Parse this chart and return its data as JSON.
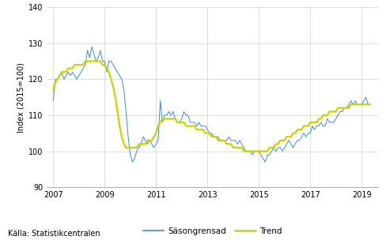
{
  "ylabel": "Index (2015=100)",
  "source": "Källa: Statistikcentralen",
  "legend_labels": [
    "Säsongrensad",
    "Trend"
  ],
  "line_color_seas": "#3a8fc7",
  "line_color_trend": "#c8d400",
  "ylim": [
    90,
    140
  ],
  "yticks": [
    90,
    100,
    110,
    120,
    130,
    140
  ],
  "xticks": [
    2007,
    2009,
    2011,
    2013,
    2015,
    2017,
    2019
  ],
  "xlim": [
    2006.75,
    2019.65
  ],
  "background_color": "#ffffff",
  "grid_color": "#d0d0d0",
  "seas_data": [
    114,
    120,
    120,
    121,
    122,
    120,
    121,
    122,
    121,
    122,
    121,
    120,
    121,
    122,
    123,
    124,
    128,
    126,
    129,
    127,
    125,
    126,
    128,
    125,
    125,
    122,
    125,
    125,
    124,
    123,
    122,
    121,
    120,
    117,
    111,
    104,
    99,
    97,
    98,
    100,
    101,
    102,
    104,
    103,
    102,
    103,
    102,
    101,
    102,
    103,
    114,
    108,
    110,
    110,
    111,
    110,
    111,
    109,
    108,
    108,
    109,
    111,
    110,
    110,
    108,
    108,
    108,
    107,
    108,
    107,
    107,
    107,
    106,
    105,
    105,
    104,
    104,
    104,
    103,
    103,
    103,
    103,
    104,
    103,
    103,
    103,
    102,
    103,
    102,
    101,
    100,
    100,
    100,
    99,
    100,
    100,
    100,
    99,
    98,
    97,
    99,
    99,
    100,
    101,
    100,
    101,
    101,
    100,
    101,
    102,
    103,
    102,
    101,
    102,
    103,
    103,
    104,
    105,
    104,
    105,
    105,
    107,
    106,
    107,
    107,
    108,
    107,
    107,
    109,
    108,
    108,
    108,
    109,
    110,
    111,
    111,
    112,
    112,
    113,
    114,
    113,
    114,
    113,
    113,
    113,
    114,
    115,
    113,
    113,
    113,
    114,
    113,
    113
  ],
  "trend_data": [
    117,
    119,
    120,
    121,
    122,
    122,
    122,
    123,
    123,
    123,
    124,
    124,
    124,
    124,
    124,
    125,
    125,
    125,
    125,
    125,
    125,
    125,
    125,
    124,
    124,
    123,
    122,
    120,
    118,
    115,
    111,
    107,
    104,
    102,
    101,
    101,
    101,
    101,
    101,
    101,
    102,
    102,
    102,
    102,
    103,
    103,
    103,
    104,
    105,
    107,
    108,
    109,
    109,
    109,
    109,
    109,
    109,
    109,
    108,
    108,
    108,
    108,
    107,
    107,
    107,
    107,
    107,
    106,
    106,
    106,
    106,
    105,
    105,
    105,
    104,
    104,
    104,
    103,
    103,
    103,
    103,
    102,
    102,
    102,
    101,
    101,
    101,
    101,
    101,
    100,
    100,
    100,
    100,
    100,
    100,
    100,
    100,
    100,
    100,
    100,
    100,
    101,
    101,
    101,
    102,
    102,
    103,
    103,
    103,
    104,
    104,
    104,
    105,
    105,
    106,
    106,
    106,
    107,
    107,
    107,
    108,
    108,
    108,
    108,
    109,
    109,
    110,
    110,
    110,
    111,
    111,
    111,
    111,
    112,
    112,
    112,
    112,
    112,
    112,
    113,
    113,
    113,
    113,
    113,
    113,
    113,
    113,
    113,
    113,
    113,
    113,
    113,
    113
  ]
}
